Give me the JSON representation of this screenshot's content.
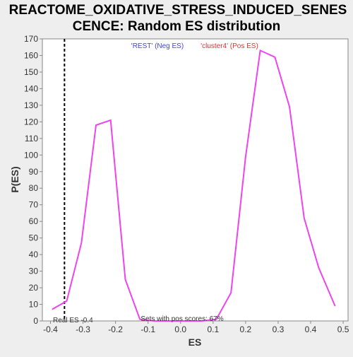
{
  "chart_data": {
    "type": "line",
    "title_lines": [
      "REACTOME_OXIDATIVE_STRESS_INDUCED_SENES",
      "CENCE: Random ES distribution"
    ],
    "xlabel": "ES",
    "ylabel": "P(ES)",
    "xlim": [
      -0.425,
      0.515
    ],
    "ylim": [
      0,
      170
    ],
    "x_ticks": [
      -0.4,
      -0.3,
      -0.2,
      -0.1,
      0.0,
      0.1,
      0.2,
      0.3,
      0.4,
      0.5
    ],
    "x_tick_labels": [
      "-0.4",
      "-0.3",
      "-0.2",
      "-0.1",
      "0.0",
      "0.1",
      "0.2",
      "0.3",
      "0.4",
      "0.5"
    ],
    "y_ticks": [
      0,
      10,
      20,
      30,
      40,
      50,
      60,
      70,
      80,
      90,
      100,
      110,
      120,
      130,
      140,
      150,
      160,
      170
    ],
    "y_tick_labels": [
      "0",
      "10",
      "20",
      "30",
      "40",
      "50",
      "60",
      "70",
      "80",
      "90",
      "100",
      "110",
      "120",
      "130",
      "140",
      "150",
      "160",
      "170"
    ],
    "grid": false,
    "series": [
      {
        "color": "#ee44ee",
        "points": [
          [
            -0.395,
            7
          ],
          [
            -0.35,
            12
          ],
          [
            -0.305,
            47
          ],
          [
            -0.26,
            118
          ],
          [
            -0.215,
            121
          ],
          [
            -0.17,
            25
          ],
          [
            -0.125,
            1
          ],
          [
            -0.08,
            0
          ],
          [
            0.0,
            0
          ],
          [
            0.065,
            0
          ],
          [
            0.11,
            1
          ],
          [
            0.155,
            17
          ],
          [
            0.2,
            99
          ],
          [
            0.245,
            163
          ],
          [
            0.29,
            159
          ],
          [
            0.335,
            129
          ],
          [
            0.38,
            62
          ],
          [
            0.425,
            32
          ],
          [
            0.475,
            9
          ]
        ]
      }
    ],
    "real_es": {
      "value": -0.357,
      "color": "#000000"
    },
    "legend": {
      "placement": "top",
      "neg": {
        "text": "'REST' (Neg ES)",
        "color": "#4444dd"
      },
      "pos": {
        "text": "'cluster4' (Pos ES)",
        "color": "#dd3333"
      }
    },
    "annotations": {
      "real_es_label": "Real ES -0.4",
      "pos_scores": "Sets with pos scores: 67%"
    }
  }
}
